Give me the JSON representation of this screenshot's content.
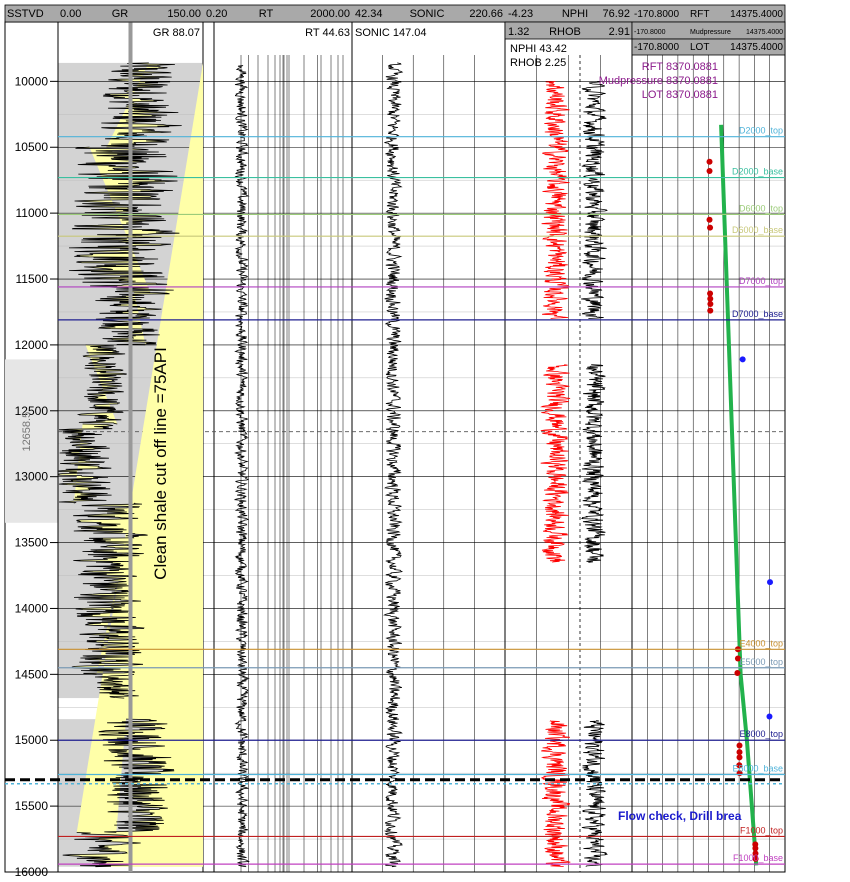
{
  "chart_data": {
    "type": "line",
    "depth_axis": {
      "label": "SSTVD",
      "range": [
        9800,
        16000
      ],
      "ticks": [
        10000,
        10500,
        11000,
        11500,
        12000,
        12500,
        13000,
        13500,
        14000,
        14500,
        15000,
        15500,
        16000
      ],
      "cursor_depth": "12658.5"
    },
    "tracks": [
      {
        "id": "gr",
        "curve": "GR",
        "scale_min": "0.00",
        "scale_max": "150.00",
        "readout": "GR 88.07",
        "color": "#000000",
        "fill": "#ffffa8",
        "annotation": "Clean shale cut off line =75API",
        "cutoff": 75
      },
      {
        "id": "rt",
        "curve": "RT",
        "scale_min": "0.20",
        "scale_max": "2000.00",
        "readout": "RT 44.63",
        "color": "#000000"
      },
      {
        "id": "sonic",
        "curve": "SONIC",
        "scale_min": "42.34",
        "scale_max": "220.66",
        "readout": "SONIC 147.04",
        "color": "#000000"
      },
      {
        "id": "neutron_density",
        "curves": [
          {
            "name": "NPHI",
            "scale_min": "-4.23",
            "scale_max": "76.92",
            "readout": "NPHI 43.42",
            "color": "#000000"
          },
          {
            "name": "RHOB",
            "scale_min": "1.32",
            "scale_max": "2.91",
            "readout": "RHOB 2.25",
            "color": "#ff0000"
          }
        ]
      },
      {
        "id": "pressure",
        "curves": [
          {
            "name": "RFT",
            "scale_min": "-170.8000",
            "scale_max": "14375.4000",
            "readout": "RFT 8370.0881",
            "color": "#cc0000"
          },
          {
            "name": "Mudpressure",
            "scale_min": "-170.8000",
            "scale_max": "14375.4000",
            "readout": "Mudpressure 8370.0881",
            "color": "#22b24c"
          },
          {
            "name": "LOT",
            "scale_min": "-170.8000",
            "scale_max": "14375.4000",
            "readout": "LOT 8370.0881",
            "color": "#1a1aff"
          }
        ],
        "mudpressure_profile": [
          [
            10330,
            8300
          ],
          [
            14500,
            10150
          ],
          [
            15000,
            10750
          ],
          [
            15950,
            11650
          ]
        ],
        "rft_points": [
          [
            10610,
            7200
          ],
          [
            10680,
            7200
          ],
          [
            11050,
            7200
          ],
          [
            11110,
            7250
          ],
          [
            11610,
            7250
          ],
          [
            11650,
            7270
          ],
          [
            11690,
            7280
          ],
          [
            11740,
            7270
          ],
          [
            14310,
            9900
          ],
          [
            14380,
            9900
          ],
          [
            14490,
            9850
          ],
          [
            15040,
            10050
          ],
          [
            15090,
            10050
          ],
          [
            15130,
            10050
          ],
          [
            15190,
            10030
          ],
          [
            15250,
            10060
          ],
          [
            15790,
            11550
          ],
          [
            15820,
            11560
          ],
          [
            15860,
            11570
          ],
          [
            15900,
            11580
          ]
        ],
        "lot_points": [
          [
            12110,
            10350
          ],
          [
            13800,
            12950
          ],
          [
            14820,
            12900
          ]
        ],
        "annotation": "Flow check, Drill brea"
      }
    ],
    "formation_tops": [
      {
        "name": "D2000_top",
        "depth": 10420,
        "color": "#4fb3d9"
      },
      {
        "name": "D2000_base",
        "depth": 10730,
        "color": "#3ac0a0"
      },
      {
        "name": "D6000_top",
        "depth": 11010,
        "color": "#9ccc7a"
      },
      {
        "name": "D6000_base",
        "depth": 11175,
        "color": "#c8c87a"
      },
      {
        "name": "D7000_top",
        "depth": 11560,
        "color": "#b040c0"
      },
      {
        "name": "D7000_base",
        "depth": 11810,
        "color": "#202090"
      },
      {
        "name": "E4000_top",
        "depth": 14310,
        "color": "#c89030"
      },
      {
        "name": "E5000_top",
        "depth": 14450,
        "color": "#7a9ab5"
      },
      {
        "name": "E8000_top",
        "depth": 15000,
        "color": "#202090"
      },
      {
        "name": "E8000_base",
        "depth": 15260,
        "color": "#4fb3d9"
      },
      {
        "name": "F1000_top",
        "depth": 15730,
        "color": "#c02020"
      },
      {
        "name": "F1000_base",
        "depth": 15940,
        "color": "#c040c0"
      }
    ],
    "casing_depth": 15300
  }
}
